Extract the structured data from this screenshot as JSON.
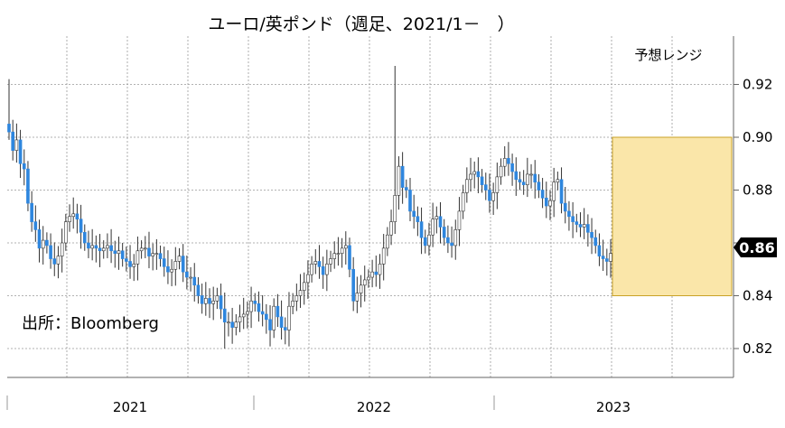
{
  "chart_data": {
    "type": "candlestick",
    "title": "ユーロ/英ポンド（週足、2021/1－　）",
    "source": "出所：Bloomberg",
    "xlabel": "",
    "ylabel": "",
    "ylim": [
      0.81,
      0.93
    ],
    "y_ticks": [
      "0.82",
      "0.84",
      "0.86",
      "0.88",
      "0.90",
      "0.92"
    ],
    "x_labels": [
      "2021",
      "2022",
      "2023"
    ],
    "last_value": "0.86",
    "forecast_range": {
      "label": "予想レンジ",
      "low": 0.84,
      "high": 0.9
    },
    "colors": {
      "up": "#ffffff",
      "down": "#2e86de",
      "wick": "#333333",
      "range_fill": "#fae6a9",
      "range_border": "#c9a227",
      "last_marker": "#000000",
      "grid": "#999999"
    },
    "close": [
      0.902,
      0.895,
      0.899,
      0.89,
      0.888,
      0.875,
      0.868,
      0.865,
      0.858,
      0.861,
      0.859,
      0.854,
      0.852,
      0.855,
      0.86,
      0.868,
      0.87,
      0.871,
      0.869,
      0.864,
      0.86,
      0.858,
      0.859,
      0.858,
      0.857,
      0.858,
      0.859,
      0.857,
      0.856,
      0.857,
      0.854,
      0.853,
      0.851,
      0.852,
      0.857,
      0.858,
      0.858,
      0.855,
      0.856,
      0.856,
      0.854,
      0.851,
      0.849,
      0.85,
      0.853,
      0.855,
      0.849,
      0.847,
      0.847,
      0.844,
      0.84,
      0.837,
      0.839,
      0.837,
      0.838,
      0.84,
      0.835,
      0.83,
      0.83,
      0.828,
      0.83,
      0.832,
      0.833,
      0.834,
      0.838,
      0.837,
      0.834,
      0.833,
      0.831,
      0.827,
      0.836,
      0.832,
      0.828,
      0.827,
      0.836,
      0.838,
      0.84,
      0.842,
      0.845,
      0.848,
      0.852,
      0.853,
      0.851,
      0.848,
      0.852,
      0.854,
      0.856,
      0.856,
      0.858,
      0.859,
      0.85,
      0.838,
      0.841,
      0.844,
      0.846,
      0.847,
      0.849,
      0.848,
      0.852,
      0.858,
      0.863,
      0.868,
      0.878,
      0.889,
      0.881,
      0.88,
      0.872,
      0.87,
      0.868,
      0.862,
      0.859,
      0.863,
      0.869,
      0.87,
      0.866,
      0.862,
      0.86,
      0.859,
      0.865,
      0.872,
      0.879,
      0.884,
      0.886,
      0.887,
      0.885,
      0.882,
      0.88,
      0.876,
      0.879,
      0.885,
      0.889,
      0.892,
      0.89,
      0.887,
      0.884,
      0.883,
      0.882,
      0.886,
      0.886,
      0.883,
      0.88,
      0.877,
      0.874,
      0.876,
      0.883,
      0.884,
      0.875,
      0.872,
      0.87,
      0.868,
      0.867,
      0.866,
      0.867,
      0.864,
      0.862,
      0.859,
      0.855,
      0.854,
      0.853,
      0.856
    ],
    "open_first": 0.905,
    "highs_notable": {
      "start": 0.922,
      "mid_2022_spike": 0.927
    },
    "lows_notable": {
      "late_2021": 0.82
    }
  }
}
